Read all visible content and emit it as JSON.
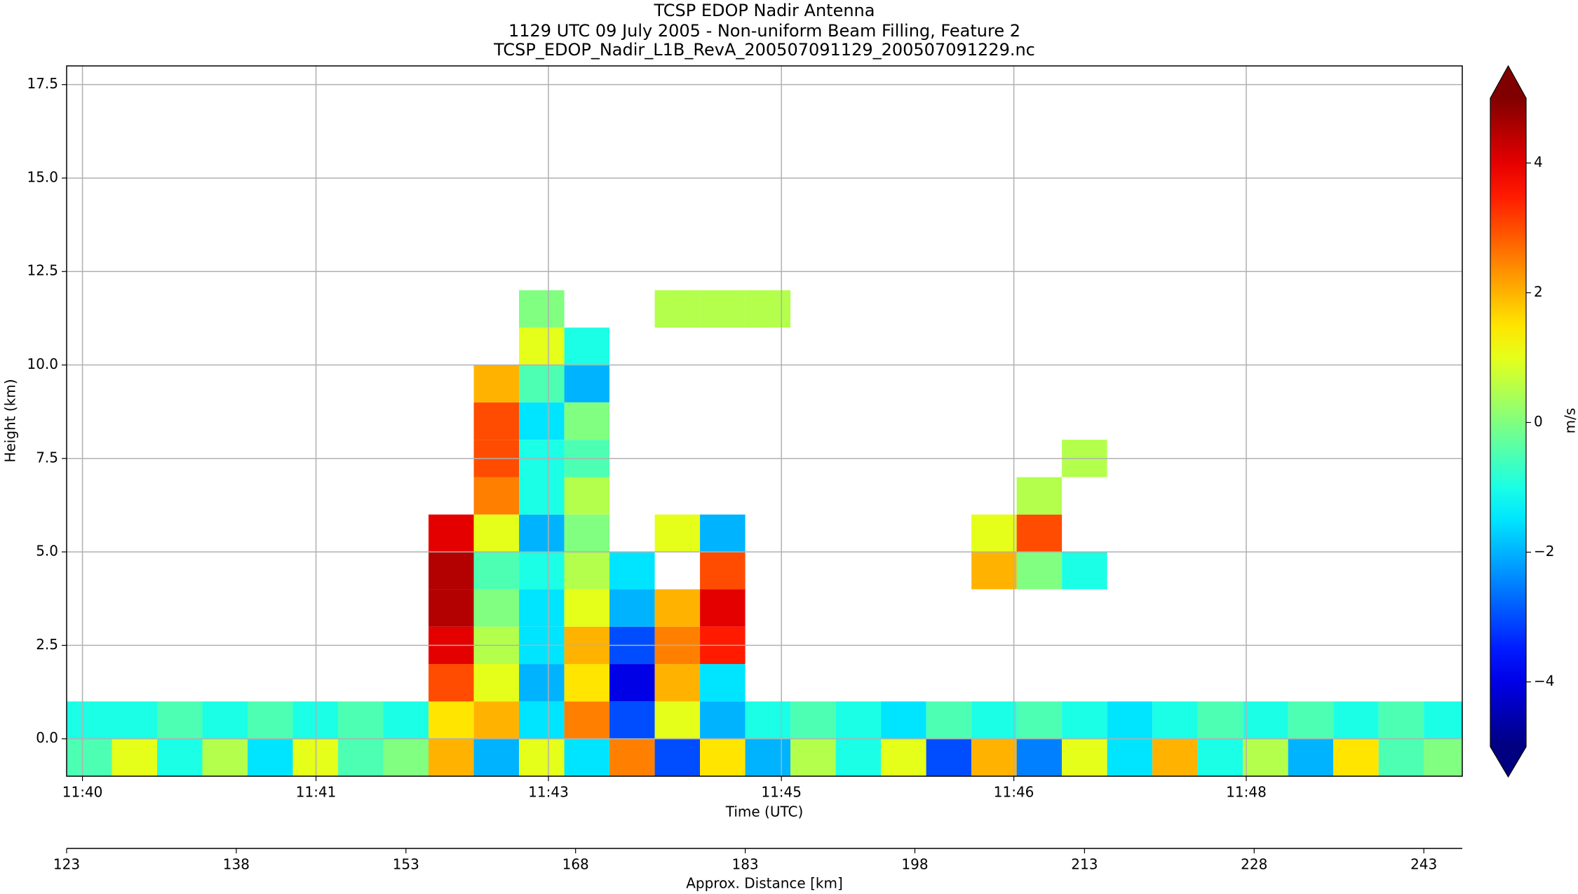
{
  "chart_data": {
    "type": "heatmap",
    "title": "TCSP EDOP Nadir Antenna",
    "subtitle": "1129 UTC 09 July 2005 - Non-uniform Beam Filling, Feature 2",
    "file_name": "TCSP_EDOP_Nadir_L1B_RevA_200507091129_200507091229.nc",
    "xlabel": "Time (UTC)",
    "ylabel": "Height (km)",
    "x2label": "Approx. Distance [km]",
    "colorbar_label": "m/s",
    "colormap": "jet",
    "clim": [
      -5,
      5
    ],
    "grid": true,
    "xlim": [
      123,
      246.4
    ],
    "ylim": [
      -1,
      18
    ],
    "xticks": [
      {
        "value": 124.4,
        "label": "11:40"
      },
      {
        "value": 145.05,
        "label": "11:41"
      },
      {
        "value": 165.6,
        "label": "11:43"
      },
      {
        "value": 186.2,
        "label": "11:45"
      },
      {
        "value": 206.75,
        "label": "11:46"
      },
      {
        "value": 227.3,
        "label": "11:48"
      }
    ],
    "x2ticks": [
      123,
      138,
      153,
      168,
      183,
      198,
      213,
      228,
      243
    ],
    "yticks": [
      {
        "value": 0,
        "label": "0.0"
      },
      2.5,
      {
        "value": 5,
        "label": "5.0"
      },
      7.5,
      {
        "value": 10,
        "label": "10.0"
      },
      12.5,
      {
        "value": 15,
        "label": "15.0"
      },
      17.5
    ],
    "cticks": [
      {
        "value": -4,
        "label": "−4"
      },
      {
        "value": -2,
        "label": "−2"
      },
      0,
      2,
      4
    ],
    "x_edges": [
      123,
      127,
      131,
      135,
      139,
      143,
      147,
      151,
      155,
      159,
      163,
      167,
      171,
      175,
      179,
      183,
      187,
      191,
      195,
      199,
      203,
      207,
      211,
      215,
      219,
      223,
      227,
      231,
      235,
      239,
      243,
      246.4
    ],
    "y_edges": [
      -1,
      0,
      1,
      2,
      3,
      4,
      5,
      6,
      7,
      8,
      9,
      10,
      11,
      12
    ],
    "values": [
      [
        -0.5,
        1,
        -1,
        0.5,
        -1.5,
        1,
        -0.5,
        0,
        2,
        -2,
        1,
        -1.5,
        2.5,
        -3,
        1.5,
        -2,
        0.5,
        -1,
        1,
        -3,
        2,
        -2.5,
        1,
        -1.5,
        2,
        -1,
        0.5,
        -2,
        1.5,
        -0.5,
        0
      ],
      [
        -1,
        -1,
        -0.5,
        -1,
        -0.5,
        -1,
        -0.5,
        -1,
        1.5,
        2,
        -1.5,
        2.5,
        -3,
        1,
        -2,
        -1,
        -0.5,
        -1,
        -1.5,
        -0.5,
        -1,
        -0.5,
        -1,
        -1.5,
        -1,
        -0.5,
        -1,
        -0.5,
        -1,
        -0.5,
        -1
      ],
      [
        null,
        null,
        null,
        null,
        null,
        null,
        null,
        null,
        3,
        1,
        -2,
        1.5,
        -4,
        2,
        -1.5,
        null,
        null,
        null,
        null,
        null,
        null,
        null,
        null,
        null,
        null,
        null,
        null,
        null,
        null,
        null,
        null
      ],
      [
        null,
        null,
        null,
        null,
        null,
        null,
        null,
        null,
        4,
        0.5,
        -1.5,
        2,
        -3,
        2.5,
        3.5,
        null,
        null,
        null,
        null,
        null,
        null,
        null,
        null,
        null,
        null,
        null,
        null,
        null,
        null,
        null,
        null
      ],
      [
        null,
        null,
        null,
        null,
        null,
        null,
        null,
        null,
        4.5,
        0,
        -1.5,
        1,
        -2,
        2,
        4,
        null,
        null,
        null,
        null,
        null,
        null,
        null,
        null,
        null,
        null,
        null,
        null,
        null,
        null,
        null,
        null
      ],
      [
        null,
        null,
        null,
        null,
        null,
        null,
        null,
        null,
        4.5,
        -0.5,
        -1,
        0.5,
        -1.5,
        null,
        3,
        null,
        null,
        null,
        null,
        null,
        2,
        0,
        -1,
        null,
        null,
        null,
        null,
        null,
        null,
        null,
        null
      ],
      [
        null,
        null,
        null,
        null,
        null,
        null,
        null,
        null,
        4,
        1,
        -2,
        0,
        null,
        1,
        -2,
        null,
        null,
        null,
        null,
        null,
        1,
        3,
        null,
        null,
        null,
        null,
        null,
        null,
        null,
        null,
        null
      ],
      [
        null,
        null,
        null,
        null,
        null,
        null,
        null,
        null,
        null,
        2.5,
        -1,
        0.5,
        null,
        null,
        null,
        null,
        null,
        null,
        null,
        null,
        null,
        0.5,
        null,
        null,
        null,
        null,
        null,
        null,
        null,
        null,
        null
      ],
      [
        null,
        null,
        null,
        null,
        null,
        null,
        null,
        null,
        null,
        3,
        -1,
        -0.5,
        null,
        null,
        null,
        null,
        null,
        null,
        null,
        null,
        null,
        null,
        0.5,
        null,
        null,
        null,
        null,
        null,
        null,
        null,
        null
      ],
      [
        null,
        null,
        null,
        null,
        null,
        null,
        null,
        null,
        null,
        3,
        -1.5,
        0,
        null,
        null,
        null,
        null,
        null,
        null,
        null,
        null,
        null,
        null,
        null,
        null,
        null,
        null,
        null,
        null,
        null,
        null,
        null
      ],
      [
        null,
        null,
        null,
        null,
        null,
        null,
        null,
        null,
        null,
        2,
        -0.5,
        -2,
        null,
        null,
        null,
        null,
        null,
        null,
        null,
        null,
        null,
        null,
        null,
        null,
        null,
        null,
        null,
        null,
        null,
        null,
        null
      ],
      [
        null,
        null,
        null,
        null,
        null,
        null,
        null,
        null,
        null,
        null,
        1,
        -1,
        null,
        null,
        null,
        null,
        null,
        null,
        null,
        null,
        null,
        null,
        null,
        null,
        null,
        null,
        null,
        null,
        null,
        null,
        null
      ],
      [
        null,
        null,
        null,
        null,
        null,
        null,
        null,
        null,
        null,
        null,
        0,
        null,
        null,
        0.5,
        0.5,
        0.5,
        null,
        null,
        null,
        null,
        null,
        null,
        null,
        null,
        null,
        null,
        null,
        null,
        null,
        null,
        null
      ]
    ]
  }
}
